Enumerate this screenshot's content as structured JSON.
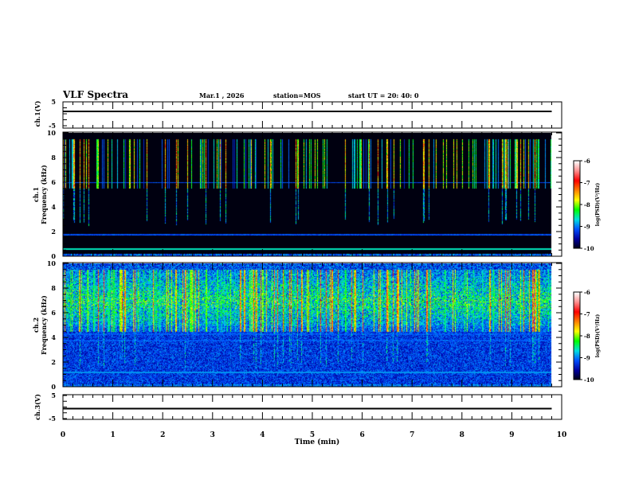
{
  "header": {
    "title": "VLF Spectra",
    "date": "Mar.1 , 2026",
    "station": "station=MOS",
    "start": "start UT =  20: 40: 0"
  },
  "chart_data": {
    "type": "heatmap",
    "xlabel": "Time (min)",
    "xlim": [
      0,
      10
    ],
    "xticks": [
      "0",
      "1",
      "2",
      "3",
      "4",
      "5",
      "6",
      "7",
      "8",
      "9",
      "10"
    ],
    "data_end_min": 9.8,
    "panels": [
      {
        "name": "ch1-waveform",
        "ylabel": "ch.1(V)",
        "ylim": [
          -5,
          5
        ],
        "yticks": [
          "5",
          "-5"
        ],
        "level": 0
      },
      {
        "name": "ch1-spectrogram",
        "ylabel": "ch.1\nFrequency (kHz)",
        "ylabel_top": "ch.1",
        "ylabel_bottom": "Frequency (kHz)",
        "ylim": [
          0,
          10
        ],
        "yticks": [
          "0",
          "2",
          "4",
          "6",
          "8",
          "10"
        ],
        "colorbar": {
          "label": "log(PSD)(V²/Hz)",
          "range": [
            -10,
            -6
          ],
          "ticks": [
            "-6",
            "-7",
            "-8",
            "-9",
            "-10"
          ]
        },
        "background_level": -10,
        "burst_band_khz": [
          5.5,
          9.5
        ],
        "lines_khz": [
          0.6,
          1.8,
          6.0
        ]
      },
      {
        "name": "ch2-spectrogram",
        "ylabel_top": "ch.2",
        "ylabel_bottom": "Frequency (kHz)",
        "ylim": [
          0,
          10
        ],
        "yticks": [
          "0",
          "2",
          "4",
          "6",
          "8",
          "10"
        ],
        "colorbar": {
          "label": "log(PSD)(V²/Hz)",
          "range": [
            -10,
            -6
          ],
          "ticks": [
            "-6",
            "-7",
            "-8",
            "-9",
            "-10"
          ]
        },
        "background_level": -9.6,
        "burst_band_khz": [
          4.5,
          9.5
        ],
        "lines_khz": [
          1.2,
          3.8,
          4.3,
          5.0
        ]
      },
      {
        "name": "ch3-waveform",
        "ylabel": "ch.3(V)",
        "ylim": [
          -5,
          5
        ],
        "yticks": [
          "5",
          "-5"
        ],
        "level": 0
      }
    ],
    "colors": {
      "cmap": [
        "#000010",
        "#0000a0",
        "#0050ff",
        "#00e0e0",
        "#00ff00",
        "#ffff00",
        "#ff8000",
        "#ff0000",
        "#ff9090",
        "#ffffff"
      ]
    }
  }
}
